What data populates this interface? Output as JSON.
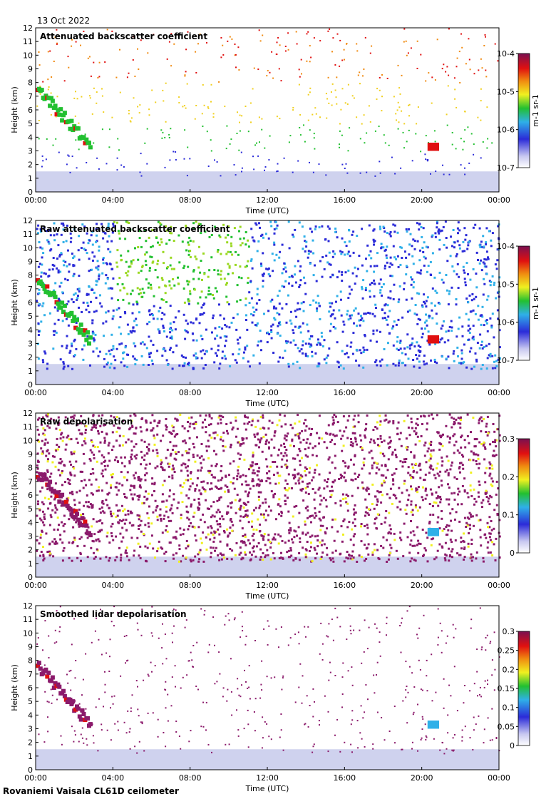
{
  "date": "13 Oct 2022",
  "footer": "Rovaniemi Vaisala CL61D ceilometer",
  "x_axis": {
    "label": "Time (UTC)",
    "ticks": [
      "00:00",
      "04:00",
      "08:00",
      "12:00",
      "16:00",
      "20:00",
      "00:00"
    ],
    "range_hours": [
      0,
      24
    ]
  },
  "y_axis": {
    "label": "Height (km)",
    "ticks": [
      "0",
      "1",
      "2",
      "3",
      "4",
      "5",
      "6",
      "7",
      "8",
      "9",
      "10",
      "11",
      "12"
    ],
    "range_km": [
      0,
      12
    ]
  },
  "colors": {
    "bg": "#ffffff",
    "lowband": "#cfd2ee",
    "dark_purple": "#8b1a6b"
  },
  "chart_data": [
    {
      "type": "heatmap",
      "title": "Attenuated backscatter coefficient",
      "xlabel": "Time (UTC)",
      "ylabel": "Height (km)",
      "colorbar": {
        "scale": "log",
        "ticks": [
          "10-7",
          "10-6",
          "10-5",
          "10-4"
        ],
        "unit": "m-1 sr-1"
      },
      "features": [
        {
          "name": "high cloud",
          "time_h": [
            0.0,
            2.8
          ],
          "height_km": [
            2.8,
            8.0
          ]
        },
        {
          "name": "cloud",
          "time_h": [
            20.3,
            20.9
          ],
          "height_km": [
            3.0,
            3.6
          ]
        },
        {
          "name": "boundary layer",
          "time_h": [
            0,
            24
          ],
          "height_km": [
            0,
            1.5
          ]
        }
      ]
    },
    {
      "type": "heatmap",
      "title": "Raw attenuated backscatter coefficient",
      "xlabel": "Time (UTC)",
      "ylabel": "Height (km)",
      "colorbar": {
        "scale": "log",
        "ticks": [
          "10-7",
          "10-6",
          "10-5",
          "10-4"
        ],
        "unit": "m-1 sr-1"
      }
    },
    {
      "type": "heatmap",
      "title": "Raw depolarisation",
      "xlabel": "Time (UTC)",
      "ylabel": "Height (km)",
      "colorbar": {
        "scale": "linear",
        "ticks": [
          "0",
          "0.1",
          "0.2",
          "0.3"
        ],
        "range": [
          0,
          0.3
        ]
      }
    },
    {
      "type": "heatmap",
      "title": "Smoothed lidar depolarisation",
      "xlabel": "Time (UTC)",
      "ylabel": "Height (km)",
      "colorbar": {
        "scale": "linear",
        "ticks": [
          "0",
          "0.05",
          "0.1",
          "0.15",
          "0.2",
          "0.25",
          "0.3"
        ],
        "range": [
          0,
          0.3
        ]
      }
    }
  ]
}
